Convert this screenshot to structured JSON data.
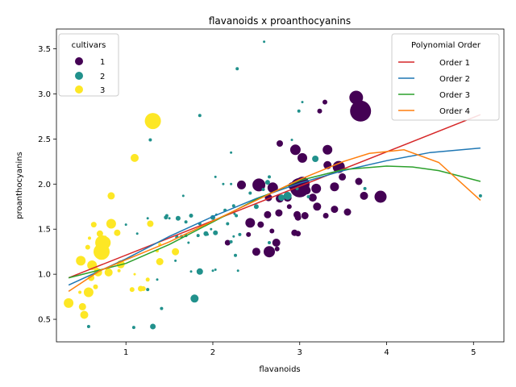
{
  "chart_data": {
    "type": "scatter",
    "title": "flavanoids x proanthocyanins",
    "xlabel": "flavanoids",
    "ylabel": "proanthocyanins",
    "xlim": [
      0.2,
      5.35
    ],
    "ylim": [
      0.25,
      3.72
    ],
    "xticks": [
      1,
      2,
      3,
      4,
      5
    ],
    "yticks": [
      0.5,
      1.0,
      1.5,
      2.0,
      2.5,
      3.0,
      3.5
    ],
    "grid": false,
    "colors": {
      "1": "#440154",
      "2": "#21918c",
      "3": "#fde725"
    },
    "cultivar_legend": {
      "title": "cultivars",
      "placement": "top-left",
      "entries": [
        {
          "label": "1",
          "color": "#440154"
        },
        {
          "label": "2",
          "color": "#21918c"
        },
        {
          "label": "3",
          "color": "#fde725"
        }
      ]
    },
    "fit_legend": {
      "title": "Polynomial Order",
      "placement": "top-right",
      "entries": [
        {
          "label": "Order 1",
          "color": "#d62728"
        },
        {
          "label": "Order 2",
          "color": "#1f77b4"
        },
        {
          "label": "Order 3",
          "color": "#2ca02c"
        },
        {
          "label": "Order 4",
          "color": "#ff7f0e"
        }
      ]
    },
    "fit_lines": [
      {
        "order": 1,
        "color": "#d62728",
        "x": [
          0.34,
          5.08
        ],
        "y": [
          0.96,
          2.77
        ]
      },
      {
        "order": 2,
        "color": "#1f77b4",
        "x": [
          0.34,
          1.0,
          1.5,
          2.0,
          2.5,
          3.0,
          3.5,
          4.0,
          4.5,
          5.08
        ],
        "y": [
          0.88,
          1.17,
          1.42,
          1.64,
          1.84,
          2.01,
          2.15,
          2.26,
          2.35,
          2.4
        ]
      },
      {
        "order": 3,
        "color": "#2ca02c",
        "x": [
          0.34,
          1.0,
          1.5,
          2.0,
          2.5,
          3.0,
          3.5,
          4.0,
          4.3,
          4.6,
          5.08
        ],
        "y": [
          0.96,
          1.12,
          1.33,
          1.58,
          1.83,
          2.04,
          2.16,
          2.2,
          2.19,
          2.15,
          2.03
        ]
      },
      {
        "order": 4,
        "color": "#ff7f0e",
        "x": [
          0.34,
          0.7,
          1.0,
          1.5,
          2.0,
          2.5,
          3.0,
          3.5,
          3.8,
          4.2,
          4.6,
          5.08
        ],
        "y": [
          0.81,
          1.04,
          1.16,
          1.36,
          1.59,
          1.82,
          2.05,
          2.25,
          2.34,
          2.38,
          2.24,
          1.82
        ]
      }
    ],
    "series": [
      {
        "cultivar": "1",
        "color": "#440154",
        "points": [
          [
            2.63,
            1.66,
            4.5
          ],
          [
            2.5,
            1.25,
            5
          ],
          [
            2.98,
            1.45,
            3.5
          ],
          [
            3.2,
            1.75,
            5
          ],
          [
            3.3,
            1.65,
            3.5
          ],
          [
            3.4,
            1.97,
            5.5
          ],
          [
            3.55,
            1.69,
            4.5
          ],
          [
            3.68,
            2.03,
            4.5
          ],
          [
            3.4,
            1.72,
            4.5
          ],
          [
            3.08,
            1.93,
            5
          ],
          [
            3.03,
            2.29,
            6
          ],
          [
            3.23,
            2.81,
            3
          ],
          [
            3.32,
            2.38,
            6
          ],
          [
            3.32,
            2.21,
            5
          ],
          [
            3.45,
            2.19,
            7.5
          ],
          [
            3.65,
            2.96,
            8.5
          ],
          [
            3.7,
            2.81,
            13
          ],
          [
            3.74,
            1.87,
            5
          ],
          [
            3.93,
            1.86,
            7.5
          ],
          [
            2.95,
            2.38,
            6.5
          ],
          [
            2.77,
            2.45,
            4
          ],
          [
            2.91,
            1.98,
            4.5
          ],
          [
            2.86,
            1.85,
            5
          ],
          [
            2.76,
            1.68,
            4.5
          ],
          [
            2.97,
            1.66,
            4.5
          ],
          [
            2.65,
            1.25,
            7
          ],
          [
            2.43,
            1.57,
            6
          ],
          [
            2.33,
            1.99,
            5.5
          ],
          [
            2.53,
            1.99,
            8
          ],
          [
            2.41,
            1.44,
            3
          ],
          [
            2.55,
            1.55,
            4
          ],
          [
            2.68,
            1.48,
            3
          ],
          [
            2.73,
            1.35,
            5
          ],
          [
            2.74,
            1.28,
            3
          ],
          [
            2.98,
            1.63,
            4
          ],
          [
            3.0,
            1.96,
            12
          ],
          [
            3.03,
            2.0,
            9
          ],
          [
            3.06,
            1.65,
            4.5
          ],
          [
            3.29,
            2.91,
            3
          ],
          [
            3.15,
            1.85,
            5
          ],
          [
            3.19,
            1.95,
            6
          ],
          [
            3.49,
            2.08,
            4.5
          ],
          [
            2.88,
            1.75,
            3
          ],
          [
            2.94,
            1.46,
            4
          ],
          [
            2.17,
            1.35,
            3.5
          ],
          [
            2.77,
            1.84,
            5
          ],
          [
            2.69,
            1.96,
            6.5
          ],
          [
            2.64,
            1.85,
            4.5
          ]
        ]
      },
      {
        "cultivar": "2",
        "color": "#21918c",
        "points": [
          [
            0.57,
            0.42,
            2
          ],
          [
            1.09,
            0.41,
            2
          ],
          [
            1.31,
            0.42,
            3.5
          ],
          [
            1.79,
            0.73,
            5
          ],
          [
            1.41,
            0.62,
            2
          ],
          [
            1.25,
            0.83,
            2
          ],
          [
            1.85,
            1.03,
            4
          ],
          [
            1.75,
            1.03,
            1.5
          ],
          [
            2.0,
            1.04,
            1.5
          ],
          [
            2.03,
            1.05,
            1.5
          ],
          [
            2.29,
            1.04,
            1.5
          ],
          [
            2.26,
            1.21,
            2
          ],
          [
            2.65,
            1.35,
            2
          ],
          [
            2.21,
            1.36,
            2
          ],
          [
            2.24,
            1.42,
            1.5
          ],
          [
            1.92,
            1.45,
            3
          ],
          [
            2.03,
            1.46,
            3
          ],
          [
            2.14,
            1.71,
            2
          ],
          [
            2.17,
            1.56,
            2
          ],
          [
            2.24,
            1.76,
            2
          ],
          [
            2.27,
            1.65,
            2
          ],
          [
            2.0,
            1.63,
            3
          ],
          [
            2.04,
            1.66,
            1.5
          ],
          [
            1.58,
            1.41,
            1.5
          ],
          [
            1.6,
            1.62,
            3
          ],
          [
            1.59,
            1.42,
            1.5
          ],
          [
            1.47,
            1.65,
            2
          ],
          [
            1.57,
            1.15,
            1.5
          ],
          [
            1.46,
            1.63,
            2.5
          ],
          [
            1.64,
            1.42,
            2
          ],
          [
            1.69,
            1.58,
            2
          ],
          [
            1.75,
            1.65,
            2.5
          ],
          [
            1.66,
            1.87,
            1.5
          ],
          [
            1.85,
            2.76,
            2
          ],
          [
            2.12,
            2.0,
            1.5
          ],
          [
            2.28,
            3.28,
            2
          ],
          [
            2.59,
            3.58,
            1.5
          ],
          [
            2.21,
            2.35,
            1.5
          ],
          [
            2.03,
            2.08,
            1.5
          ],
          [
            2.65,
            2.08,
            2
          ],
          [
            2.63,
            2.02,
            3
          ],
          [
            2.79,
            1.85,
            4
          ],
          [
            2.86,
            1.87,
            5
          ],
          [
            2.97,
            1.95,
            2
          ],
          [
            2.91,
            2.49,
            1.5
          ],
          [
            3.03,
            2.91,
            1.5
          ],
          [
            3.1,
            1.86,
            2
          ],
          [
            3.75,
            1.95,
            2
          ],
          [
            5.08,
            1.87,
            2
          ],
          [
            3.18,
            2.28,
            4
          ],
          [
            2.99,
            2.81,
            2
          ],
          [
            2.58,
            1.94,
            2
          ],
          [
            2.43,
            1.9,
            2
          ],
          [
            2.25,
            1.67,
            1.5
          ],
          [
            2.5,
            1.75,
            3
          ],
          [
            2.31,
            1.44,
            2
          ],
          [
            1.28,
            2.49,
            2
          ],
          [
            1.36,
            0.94,
            1.5
          ],
          [
            1.0,
            1.55,
            1.5
          ],
          [
            1.13,
            1.45,
            1.5
          ],
          [
            1.83,
            1.43,
            2
          ],
          [
            1.69,
            1.43,
            2
          ],
          [
            1.5,
            1.62,
            1.5
          ],
          [
            1.85,
            1.56,
            2
          ],
          [
            1.25,
            1.62,
            1.5
          ],
          [
            1.94,
            1.44,
            1.5
          ],
          [
            2.21,
            2.0,
            1.5
          ],
          [
            1.98,
            1.5,
            1.5
          ],
          [
            1.72,
            1.35,
            1.5
          ]
        ]
      },
      {
        "cultivar": "3",
        "color": "#fde725",
        "points": [
          [
            1.31,
            2.7,
            10
          ],
          [
            1.1,
            2.29,
            5
          ],
          [
            0.83,
            1.87,
            4.5
          ],
          [
            0.34,
            0.68,
            6
          ],
          [
            0.47,
            0.8,
            2
          ],
          [
            0.48,
            1.15,
            6
          ],
          [
            0.5,
            0.64,
            4.5
          ],
          [
            0.52,
            0.55,
            5
          ],
          [
            0.55,
            0.8,
            3
          ],
          [
            0.56,
            1.3,
            3
          ],
          [
            0.57,
            0.8,
            6
          ],
          [
            0.58,
            1.4,
            2
          ],
          [
            0.6,
            0.96,
            4
          ],
          [
            0.61,
            1.1,
            6
          ],
          [
            0.63,
            1.55,
            3.5
          ],
          [
            0.65,
            0.86,
            3
          ],
          [
            0.66,
            1.05,
            3
          ],
          [
            0.68,
            1.02,
            5
          ],
          [
            0.7,
            1.45,
            4
          ],
          [
            0.7,
            1.24,
            7.5
          ],
          [
            0.72,
            1.25,
            10
          ],
          [
            0.73,
            1.35,
            9
          ],
          [
            0.75,
            1.35,
            8
          ],
          [
            0.76,
            1.41,
            2
          ],
          [
            0.79,
            1.04,
            3
          ],
          [
            0.8,
            1.02,
            5
          ],
          [
            0.83,
            1.56,
            6
          ],
          [
            0.9,
            1.46,
            4
          ],
          [
            0.92,
            1.04,
            2
          ],
          [
            0.94,
            1.11,
            5
          ],
          [
            1.07,
            0.83,
            3
          ],
          [
            1.17,
            0.84,
            3.5
          ],
          [
            1.2,
            0.84,
            3
          ],
          [
            1.25,
            0.94,
            2.5
          ],
          [
            1.28,
            1.56,
            4
          ],
          [
            1.36,
            1.26,
            2
          ],
          [
            1.39,
            1.14,
            4.5
          ],
          [
            1.57,
            1.25,
            4.5
          ],
          [
            1.1,
            1.0,
            1.5
          ],
          [
            1.39,
            1.33,
            2
          ]
        ]
      }
    ]
  }
}
